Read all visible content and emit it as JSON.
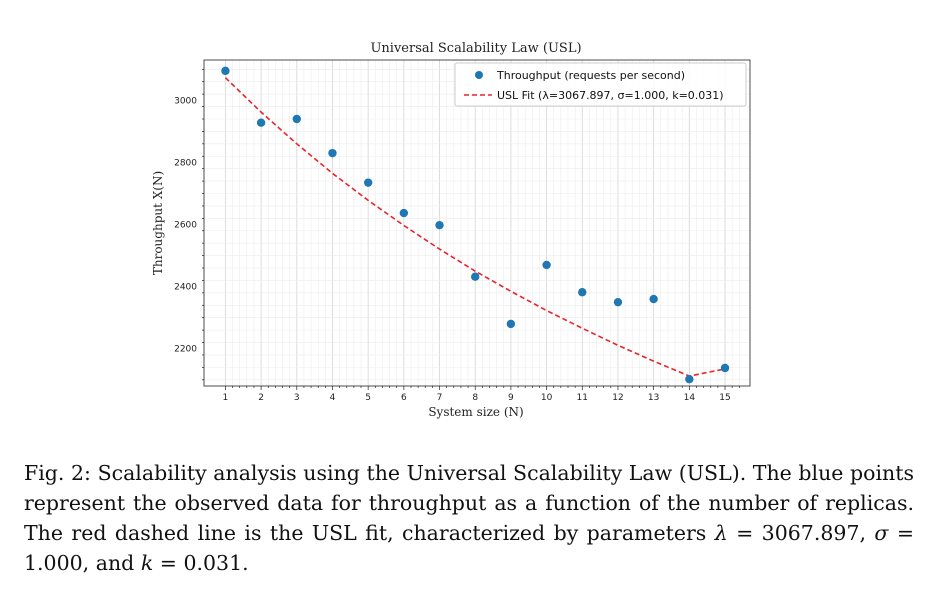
{
  "chart_data": {
    "type": "scatter",
    "title": "Universal Scalability Law (USL)",
    "xlabel": "System size (N)",
    "ylabel": "Throughput X(N)",
    "xlim": [
      0.4,
      15.7
    ],
    "ylim": [
      2080,
      3130
    ],
    "x_ticks": [
      1,
      2,
      3,
      4,
      5,
      6,
      7,
      8,
      9,
      10,
      11,
      12,
      13,
      14,
      15
    ],
    "y_ticks": [
      2200,
      2400,
      2600,
      2800,
      3000
    ],
    "grid": true,
    "legend_position": "top-right",
    "series": [
      {
        "name": "Throughput (requests per second)",
        "kind": "scatter",
        "color": "#1f77b4",
        "x": [
          1,
          2,
          3,
          4,
          5,
          6,
          7,
          8,
          9,
          10,
          11,
          12,
          13,
          14,
          15
        ],
        "y": [
          3095,
          2928,
          2940,
          2830,
          2735,
          2637,
          2598,
          2432,
          2280,
          2470,
          2382,
          2350,
          2360,
          2102,
          2138
        ]
      },
      {
        "name": "USL Fit (λ=3067.897, σ=1.000, k=0.031)",
        "kind": "line",
        "style": "dashed",
        "color": "#e8242b",
        "x": [
          1,
          2,
          3,
          4,
          5,
          6,
          7,
          8,
          9,
          10,
          11,
          12,
          13,
          14,
          15
        ],
        "y": [
          3073,
          2962,
          2860,
          2765,
          2678,
          2597,
          2521,
          2450,
          2385,
          2323,
          2266,
          2211,
          2160,
          2112,
          2135
        ]
      }
    ]
  },
  "caption": {
    "label": "Fig. 2:",
    "text": "Scalability analysis using the Universal Scalability Law (USL). The blue points represent the observed data for throughput as a function of the number of replicas. The red dashed line is the USL fit, characterized by parameters",
    "lambda_sym": "λ",
    "lambda_val": " = 3067.897,",
    "sigma_sym": "σ",
    "sigma_val": " = 1.000, and",
    "k_sym": "k",
    "k_val": " = 0.031."
  }
}
